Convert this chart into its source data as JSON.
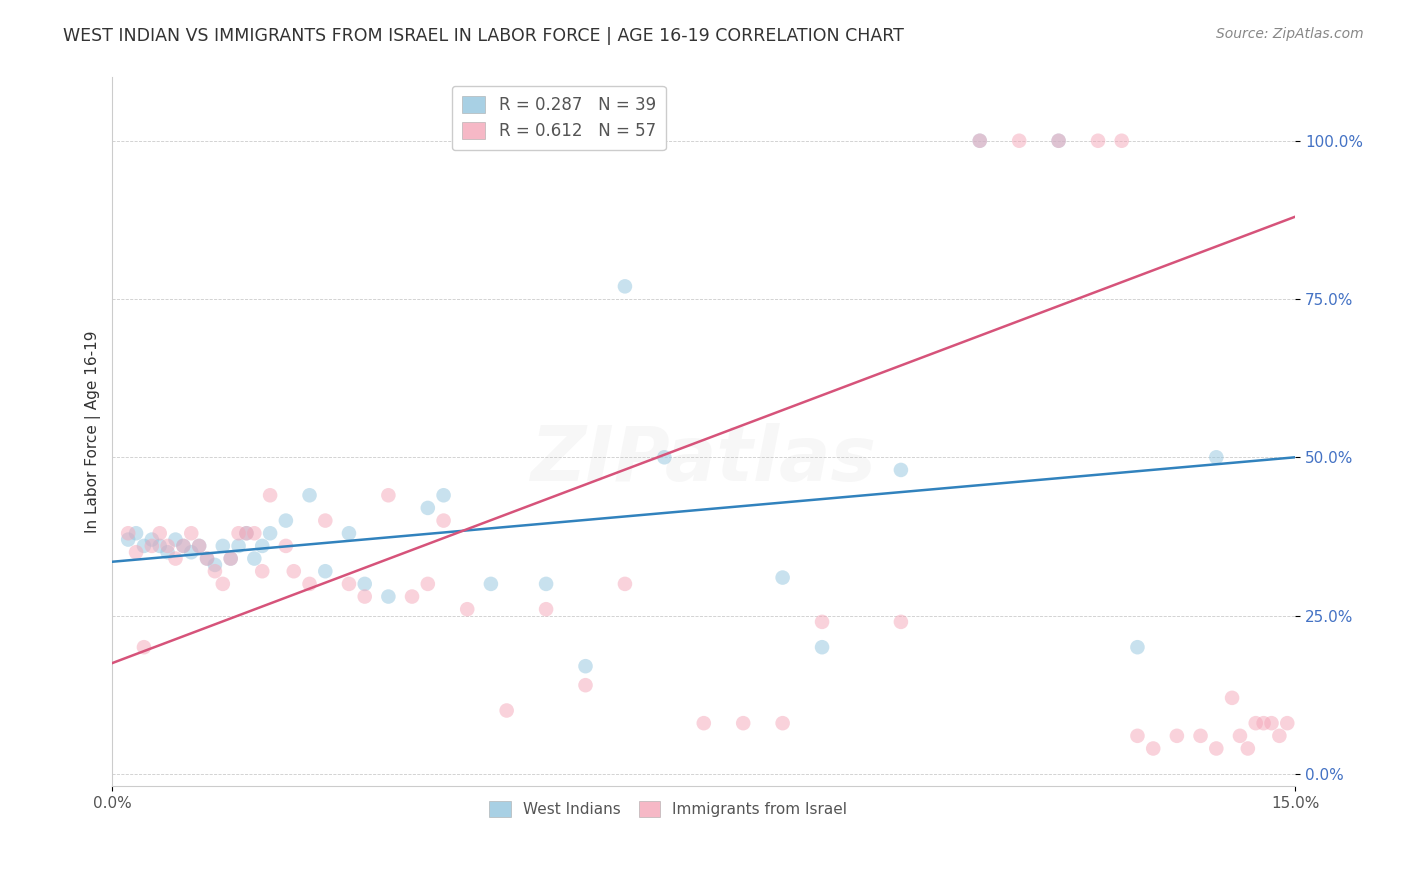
{
  "title": "WEST INDIAN VS IMMIGRANTS FROM ISRAEL IN LABOR FORCE | AGE 16-19 CORRELATION CHART",
  "source": "Source: ZipAtlas.com",
  "ylabel": "In Labor Force | Age 16-19",
  "xlim": [
    0.0,
    0.15
  ],
  "ylim": [
    -0.02,
    1.1
  ],
  "yticks": [
    0.0,
    0.25,
    0.5,
    0.75,
    1.0
  ],
  "xticks": [
    0.0,
    0.15
  ],
  "legend_r1": "R = 0.287",
  "legend_n1": "N = 39",
  "legend_r2": "R = 0.612",
  "legend_n2": "N = 57",
  "blue_color": "#92c5de",
  "pink_color": "#f4a6b8",
  "blue_line_color": "#3182bd",
  "pink_line_color": "#d6537a",
  "watermark_text": "ZIPatlas",
  "blue_scatter_x": [
    0.002,
    0.003,
    0.004,
    0.005,
    0.006,
    0.007,
    0.008,
    0.009,
    0.01,
    0.011,
    0.012,
    0.013,
    0.014,
    0.015,
    0.016,
    0.017,
    0.018,
    0.019,
    0.02,
    0.022,
    0.025,
    0.027,
    0.03,
    0.032,
    0.035,
    0.04,
    0.042,
    0.048,
    0.055,
    0.06,
    0.065,
    0.07,
    0.085,
    0.09,
    0.1,
    0.11,
    0.12,
    0.13,
    0.14
  ],
  "blue_scatter_y": [
    0.37,
    0.38,
    0.36,
    0.37,
    0.36,
    0.35,
    0.37,
    0.36,
    0.35,
    0.36,
    0.34,
    0.33,
    0.36,
    0.34,
    0.36,
    0.38,
    0.34,
    0.36,
    0.38,
    0.4,
    0.44,
    0.32,
    0.38,
    0.3,
    0.28,
    0.42,
    0.44,
    0.3,
    0.3,
    0.17,
    0.77,
    0.5,
    0.31,
    0.2,
    0.48,
    1.0,
    1.0,
    0.2,
    0.5
  ],
  "pink_scatter_x": [
    0.002,
    0.003,
    0.005,
    0.006,
    0.007,
    0.008,
    0.009,
    0.01,
    0.011,
    0.012,
    0.013,
    0.014,
    0.015,
    0.016,
    0.017,
    0.018,
    0.019,
    0.02,
    0.022,
    0.023,
    0.025,
    0.027,
    0.03,
    0.032,
    0.035,
    0.038,
    0.04,
    0.042,
    0.045,
    0.05,
    0.055,
    0.06,
    0.065,
    0.075,
    0.08,
    0.085,
    0.09,
    0.1,
    0.11,
    0.115,
    0.12,
    0.125,
    0.128,
    0.13,
    0.132,
    0.135,
    0.138,
    0.14,
    0.142,
    0.143,
    0.144,
    0.145,
    0.146,
    0.147,
    0.148,
    0.149,
    0.004
  ],
  "pink_scatter_y": [
    0.38,
    0.35,
    0.36,
    0.38,
    0.36,
    0.34,
    0.36,
    0.38,
    0.36,
    0.34,
    0.32,
    0.3,
    0.34,
    0.38,
    0.38,
    0.38,
    0.32,
    0.44,
    0.36,
    0.32,
    0.3,
    0.4,
    0.3,
    0.28,
    0.44,
    0.28,
    0.3,
    0.4,
    0.26,
    0.1,
    0.26,
    0.14,
    0.3,
    0.08,
    0.08,
    0.08,
    0.24,
    0.24,
    1.0,
    1.0,
    1.0,
    1.0,
    1.0,
    0.06,
    0.04,
    0.06,
    0.06,
    0.04,
    0.12,
    0.06,
    0.04,
    0.08,
    0.08,
    0.08,
    0.06,
    0.08,
    0.2
  ],
  "blue_line_x": [
    0.0,
    0.15
  ],
  "blue_line_y": [
    0.335,
    0.5
  ],
  "pink_line_x": [
    0.0,
    0.15
  ],
  "pink_line_y": [
    0.175,
    0.88
  ],
  "marker_size": 110,
  "marker_alpha": 0.5,
  "title_fontsize": 12.5,
  "label_fontsize": 11,
  "tick_fontsize": 11,
  "source_fontsize": 10,
  "watermark_fontsize": 55,
  "watermark_alpha": 0.09,
  "tick_color_y": "#4472c4",
  "tick_color_x": "#555555",
  "legend_text_color_r": "#333333",
  "legend_text_color_n": "#4472c4"
}
